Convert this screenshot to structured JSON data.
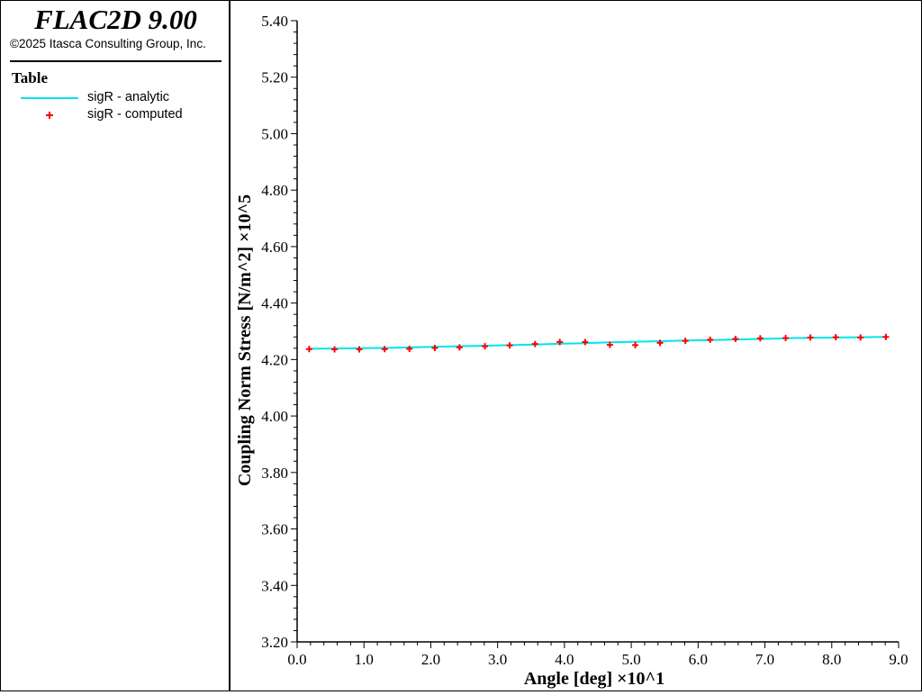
{
  "header": {
    "app_title": "FLAC2D 9.00",
    "copyright": "©2025 Itasca Consulting Group, Inc."
  },
  "legend": {
    "title": "Table",
    "items": [
      {
        "label": "sigR - analytic",
        "color": "#00e5ee",
        "marker": "line"
      },
      {
        "label": "sigR - computed",
        "color": "#ff0000",
        "marker": "plus"
      }
    ]
  },
  "chart_data": {
    "type": "line",
    "title": "",
    "xlabel": "Angle [deg] ×10^1",
    "ylabel": "Coupling Norm Stress [N/m^2] ×10^5",
    "xlim": [
      0.0,
      9.0
    ],
    "ylim": [
      3.2,
      5.4
    ],
    "x_ticks": [
      "0.0",
      "1.0",
      "2.0",
      "3.0",
      "4.0",
      "5.0",
      "6.0",
      "7.0",
      "8.0",
      "9.0"
    ],
    "y_ticks": [
      "3.20",
      "3.40",
      "3.60",
      "3.80",
      "4.00",
      "4.20",
      "4.40",
      "4.60",
      "4.80",
      "5.00",
      "5.20",
      "5.40"
    ],
    "grid": false,
    "series": [
      {
        "name": "sigR - analytic",
        "style": "line",
        "color": "#00e5ee",
        "x": [
          0.18,
          0.56,
          0.93,
          1.31,
          1.68,
          2.06,
          2.43,
          2.81,
          3.18,
          3.56,
          3.93,
          4.31,
          4.68,
          5.06,
          5.43,
          5.81,
          6.18,
          6.56,
          6.93,
          7.31,
          7.68,
          8.06,
          8.43,
          8.81
        ],
        "y": [
          4.238,
          4.239,
          4.24,
          4.241,
          4.243,
          4.245,
          4.247,
          4.249,
          4.251,
          4.253,
          4.256,
          4.258,
          4.261,
          4.263,
          4.265,
          4.267,
          4.269,
          4.271,
          4.273,
          4.275,
          4.277,
          4.278,
          4.279,
          4.28
        ]
      },
      {
        "name": "sigR - computed",
        "style": "plus",
        "color": "#ff0000",
        "x": [
          0.18,
          0.56,
          0.93,
          1.31,
          1.68,
          2.06,
          2.43,
          2.81,
          3.18,
          3.56,
          3.93,
          4.31,
          4.68,
          5.06,
          5.43,
          5.81,
          6.18,
          6.56,
          6.93,
          7.31,
          7.68,
          8.06,
          8.43,
          8.81
        ],
        "y": [
          4.237,
          4.236,
          4.236,
          4.237,
          4.238,
          4.241,
          4.243,
          4.247,
          4.25,
          4.255,
          4.262,
          4.262,
          4.252,
          4.251,
          4.259,
          4.266,
          4.27,
          4.273,
          4.275,
          4.276,
          4.278,
          4.279,
          4.278,
          4.28
        ]
      }
    ]
  }
}
